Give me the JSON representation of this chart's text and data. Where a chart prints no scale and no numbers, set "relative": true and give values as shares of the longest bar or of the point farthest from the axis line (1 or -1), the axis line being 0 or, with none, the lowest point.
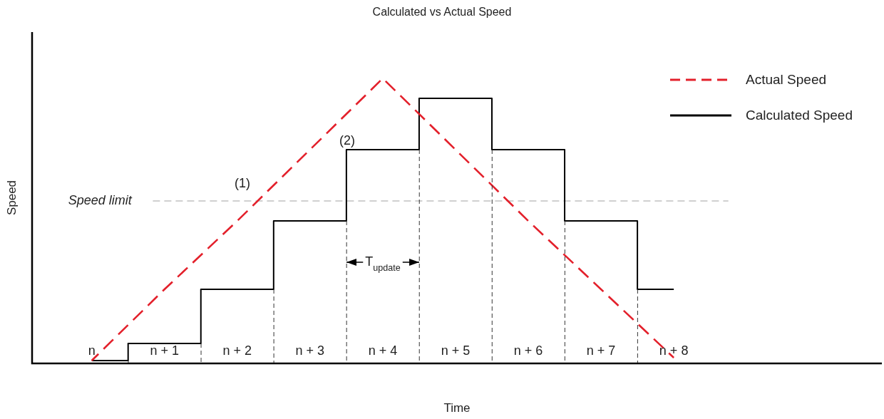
{
  "chart_data": {
    "type": "line",
    "title": "Calculated vs Actual Speed",
    "xlabel": "Time",
    "ylabel": "Speed",
    "categories": [
      "n",
      "n + 1",
      "n + 2",
      "n + 3",
      "n + 4",
      "n + 5",
      "n + 6",
      "n + 7",
      "n + 8"
    ],
    "relative": true,
    "legend": "top right",
    "marker": "none",
    "series": [
      {
        "name": "Actual Speed",
        "type": "line",
        "line_style": "dashed",
        "color": "#e3202b",
        "values": [
          0.01,
          0.26,
          0.5,
          0.75,
          1,
          0.75,
          0.5,
          0.26,
          0.02
        ]
      },
      {
        "name": "Calculated Speed",
        "type": "step",
        "line_style": "solid",
        "color": "#000000",
        "values": [
          0.01,
          0.07,
          0.26,
          0.5,
          0.75,
          0.93,
          0.75,
          0.5,
          0.26
        ]
      }
    ],
    "ref_lines": [
      {
        "axis": "y",
        "value": 0.57,
        "label": "Speed limit",
        "color": "#a0a0a0",
        "line_style": "dashed"
      }
    ],
    "annotations": [
      "(1)",
      "(2)",
      "T$_{update}$"
    ]
  }
}
